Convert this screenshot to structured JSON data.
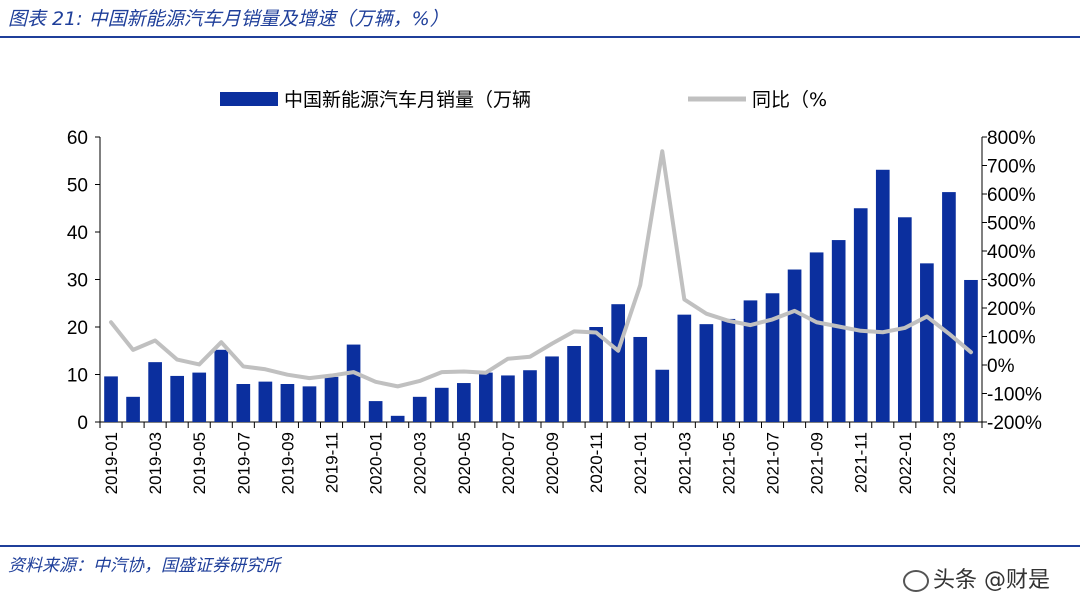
{
  "header": {
    "title": "图表 21:  中国新能源汽车月销量及增速（万辆，%）"
  },
  "footer": {
    "source": "资料来源：中汽协，国盛证券研究所",
    "watermark": "头条 @财是"
  },
  "colors": {
    "bar": "#0b2f9e",
    "line": "#c0c0c0",
    "rule": "#1f3f9a"
  },
  "chart_data": {
    "type": "bar",
    "categories": [
      "2019-01",
      "2019-02",
      "2019-03",
      "2019-04",
      "2019-05",
      "2019-06",
      "2019-07",
      "2019-08",
      "2019-09",
      "2019-10",
      "2019-11",
      "2019-12",
      "2020-01",
      "2020-02",
      "2020-03",
      "2020-04",
      "2020-05",
      "2020-06",
      "2020-07",
      "2020-08",
      "2020-09",
      "2020-10",
      "2020-11",
      "2020-12",
      "2021-01",
      "2021-02",
      "2021-03",
      "2021-04",
      "2021-05",
      "2021-06",
      "2021-07",
      "2021-08",
      "2021-09",
      "2021-10",
      "2021-11",
      "2021-12",
      "2022-01",
      "2022-02",
      "2022-03",
      "2022-04"
    ],
    "x_tick_labels": [
      "2019-01",
      "2019-03",
      "2019-05",
      "2019-07",
      "2019-09",
      "2019-11",
      "2020-01",
      "2020-03",
      "2020-05",
      "2020-07",
      "2020-09",
      "2020-11",
      "2021-01",
      "2021-03",
      "2021-05",
      "2021-07",
      "2021-09",
      "2021-11",
      "2022-01",
      "2022-03"
    ],
    "series": [
      {
        "name": "中国新能源汽车月销量（万辆",
        "axis": "left",
        "type": "bar",
        "values": [
          9.6,
          5.3,
          12.6,
          9.7,
          10.4,
          15.2,
          8.0,
          8.5,
          8.0,
          7.5,
          9.5,
          16.3,
          4.4,
          1.3,
          5.3,
          7.2,
          8.2,
          10.4,
          9.8,
          10.9,
          13.8,
          16.0,
          20.0,
          24.8,
          17.9,
          11.0,
          22.6,
          20.6,
          21.7,
          25.6,
          27.1,
          32.1,
          35.7,
          38.3,
          45.0,
          53.1,
          43.1,
          33.4,
          48.4,
          29.9
        ]
      },
      {
        "name": "同比（%",
        "axis": "right",
        "type": "line",
        "values": [
          150,
          53,
          86,
          19,
          2,
          80,
          -5,
          -15,
          -34,
          -46,
          -37,
          -25,
          -59,
          -75,
          -56,
          -25,
          -23,
          -27,
          22,
          29,
          75,
          118,
          114,
          50,
          280,
          750,
          230,
          180,
          155,
          140,
          160,
          190,
          150,
          135,
          120,
          115,
          130,
          170,
          110,
          45
        ]
      }
    ],
    "y_left": {
      "min": 0,
      "max": 60,
      "ticks": [
        0,
        10,
        20,
        30,
        40,
        50,
        60
      ]
    },
    "y_right": {
      "min": -200,
      "max": 800,
      "ticks": [
        "-200%",
        "-100%",
        "0%",
        "100%",
        "200%",
        "300%",
        "400%",
        "500%",
        "600%",
        "700%",
        "800%"
      ]
    },
    "legend": {
      "position": "top-center"
    },
    "grid": false
  }
}
